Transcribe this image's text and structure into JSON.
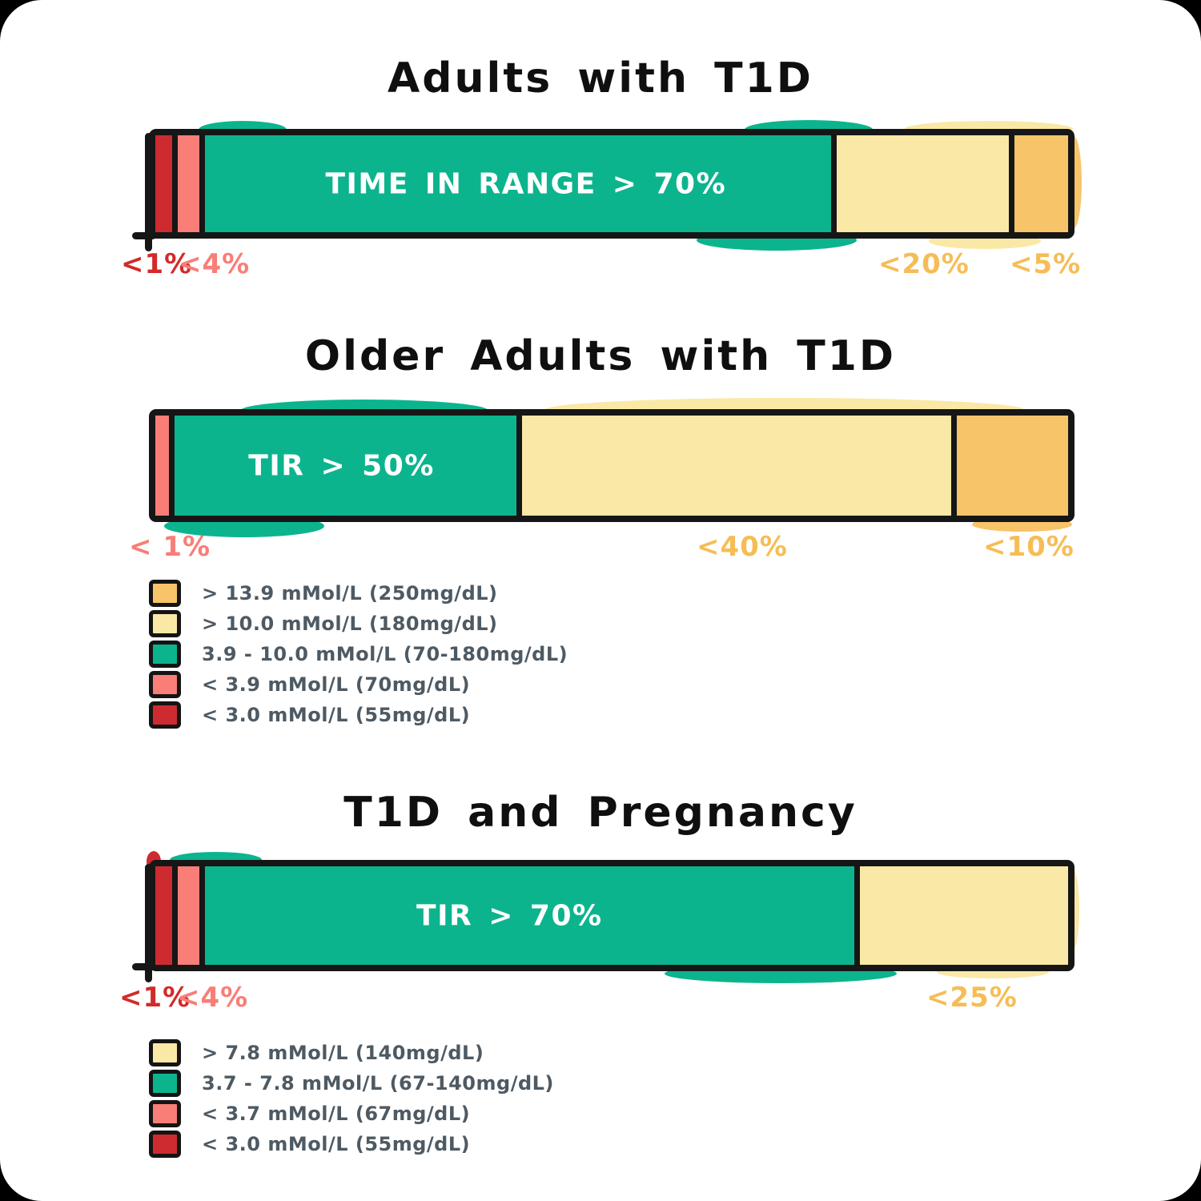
{
  "palette": {
    "green": "#0cb48e",
    "light_yellow": "#fae8a6",
    "orange": "#f8c469",
    "pink": "#f87e77",
    "dark_red": "#ce2b30",
    "annotation_red": "#d22a2a",
    "annotation_pink": "#f87e77",
    "annotation_orange": "#f6bd56",
    "bar_outline": "#161616",
    "title_color": "#0f0f0f",
    "legend_text": "#4e5a63",
    "bar_label_white": "#ffffff"
  },
  "chart_data": [
    {
      "type": "bar",
      "orientation": "horizontal-stacked",
      "title": "Adults with T1D",
      "bar_label": "TIME IN RANGE > 70%",
      "units": "% of time in glucose range",
      "segments": [
        {
          "name": "very-low",
          "color": "dark_red",
          "width_pct": 1.9,
          "annotation": "<1%"
        },
        {
          "name": "low",
          "color": "pink",
          "width_pct": 2.4,
          "annotation": "<4%"
        },
        {
          "name": "in-range",
          "color": "green",
          "width_pct": 70.3,
          "annotation": "TIME IN RANGE > 70%"
        },
        {
          "name": "high",
          "color": "light_yellow",
          "width_pct": 19.4,
          "annotation": "<20%"
        },
        {
          "name": "very-high",
          "color": "orange",
          "width_pct": 6.0,
          "annotation": "<5%"
        }
      ]
    },
    {
      "type": "bar",
      "orientation": "horizontal-stacked",
      "title": "Older Adults with T1D",
      "bar_label": "TIR > 50%",
      "units": "% of time in glucose range",
      "segments": [
        {
          "name": "low",
          "color": "pink",
          "width_pct": 1.5,
          "annotation": "< 1%"
        },
        {
          "name": "in-range",
          "color": "green",
          "width_pct": 38.2,
          "annotation": "TIR > 50%"
        },
        {
          "name": "high",
          "color": "light_yellow",
          "width_pct": 47.9,
          "annotation": "<40%"
        },
        {
          "name": "very-high",
          "color": "orange",
          "width_pct": 12.4,
          "annotation": "<10%"
        }
      ]
    },
    {
      "type": "bar",
      "orientation": "horizontal-stacked",
      "title": "T1D and Pregnancy",
      "bar_label": "TIR > 70%",
      "units": "% of time in glucose range",
      "segments": [
        {
          "name": "very-low",
          "color": "dark_red",
          "width_pct": 1.9,
          "annotation": "<1%"
        },
        {
          "name": "low",
          "color": "pink",
          "width_pct": 2.4,
          "annotation": "<4%"
        },
        {
          "name": "in-range",
          "color": "green",
          "width_pct": 72.5,
          "annotation": "TIR > 70%"
        },
        {
          "name": "high",
          "color": "light_yellow",
          "width_pct": 23.2,
          "annotation": "<25%"
        }
      ]
    }
  ],
  "legends": [
    {
      "items": [
        {
          "color": "orange",
          "label": "> 13.9 mMol/L (250mg/dL)"
        },
        {
          "color": "light_yellow",
          "label": "> 10.0 mMol/L (180mg/dL)"
        },
        {
          "color": "green",
          "label": "3.9 - 10.0 mMol/L (70-180mg/dL)"
        },
        {
          "color": "pink",
          "label": "< 3.9 mMol/L (70mg/dL)"
        },
        {
          "color": "dark_red",
          "label": "< 3.0 mMol/L (55mg/dL)"
        }
      ]
    },
    {
      "items": [
        {
          "color": "light_yellow",
          "label": "> 7.8 mMol/L (140mg/dL)"
        },
        {
          "color": "green",
          "label": "3.7 - 7.8 mMol/L (67-140mg/dL)"
        },
        {
          "color": "pink",
          "label": "< 3.7 mMol/L (67mg/dL)"
        },
        {
          "color": "dark_red",
          "label": "< 3.0 mMol/L (55mg/dL)"
        }
      ]
    }
  ]
}
